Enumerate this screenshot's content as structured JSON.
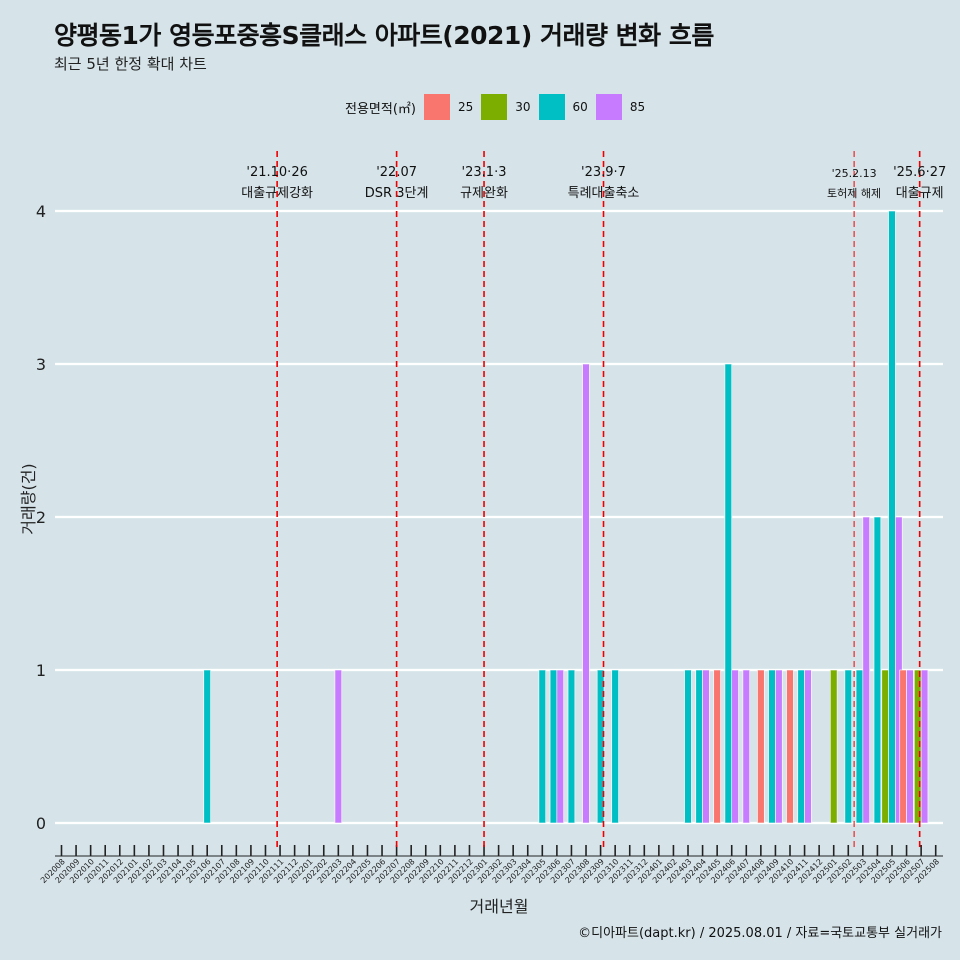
{
  "chart_data": {
    "type": "bar",
    "title": "양평동1가 영등포중흥S클래스 아파트(2021) 거래량 변화 흐름",
    "subtitle": "최근 5년 한정 확대 차트",
    "xlabel": "거래년월",
    "ylabel": "거래량(건)",
    "ylim": [
      -0.18,
      4.4
    ],
    "yticks": [
      "0",
      "1",
      "2",
      "3",
      "4"
    ],
    "legend": {
      "title": "전용면적(㎡)",
      "position": "top"
    },
    "series_colors": {
      "25": "#f8766d",
      "30": "#7cae00",
      "60": "#00bfc4",
      "85": "#c77cff"
    },
    "categories": [
      "202008",
      "202009",
      "202010",
      "202011",
      "202012",
      "202101",
      "202102",
      "202103",
      "202104",
      "202105",
      "202106",
      "202107",
      "202108",
      "202109",
      "202110",
      "202111",
      "202112",
      "202201",
      "202202",
      "202203",
      "202204",
      "202205",
      "202206",
      "202207",
      "202208",
      "202209",
      "202210",
      "202211",
      "202212",
      "202301",
      "202302",
      "202303",
      "202304",
      "202305",
      "202306",
      "202307",
      "202308",
      "202309",
      "202310",
      "202311",
      "202312",
      "202401",
      "202402",
      "202403",
      "202404",
      "202405",
      "202406",
      "202407",
      "202408",
      "202409",
      "202410",
      "202411",
      "202412",
      "202501",
      "202502",
      "202503",
      "202504",
      "202505",
      "202506",
      "202507",
      "202508"
    ],
    "bars": [
      {
        "month": "202106",
        "area": "60",
        "value": 1
      },
      {
        "month": "202203",
        "area": "85",
        "value": 1
      },
      {
        "month": "202305",
        "area": "60",
        "value": 1
      },
      {
        "month": "202306",
        "area": "60",
        "value": 1
      },
      {
        "month": "202306",
        "area": "85",
        "value": 1
      },
      {
        "month": "202307",
        "area": "60",
        "value": 1
      },
      {
        "month": "202308",
        "area": "85",
        "value": 3
      },
      {
        "month": "202309",
        "area": "60",
        "value": 1
      },
      {
        "month": "202310",
        "area": "60",
        "value": 1
      },
      {
        "month": "202403",
        "area": "60",
        "value": 1
      },
      {
        "month": "202404",
        "area": "60",
        "value": 1
      },
      {
        "month": "202404",
        "area": "85",
        "value": 1
      },
      {
        "month": "202405",
        "area": "25",
        "value": 1
      },
      {
        "month": "202406",
        "area": "60",
        "value": 3
      },
      {
        "month": "202406",
        "area": "85",
        "value": 1
      },
      {
        "month": "202407",
        "area": "85",
        "value": 1
      },
      {
        "month": "202408",
        "area": "25",
        "value": 1
      },
      {
        "month": "202409",
        "area": "60",
        "value": 1
      },
      {
        "month": "202409",
        "area": "85",
        "value": 1
      },
      {
        "month": "202410",
        "area": "25",
        "value": 1
      },
      {
        "month": "202411",
        "area": "60",
        "value": 1
      },
      {
        "month": "202411",
        "area": "85",
        "value": 1
      },
      {
        "month": "202501",
        "area": "30",
        "value": 1
      },
      {
        "month": "202502",
        "area": "60",
        "value": 1
      },
      {
        "month": "202503",
        "area": "60",
        "value": 1
      },
      {
        "month": "202503",
        "area": "85",
        "value": 2
      },
      {
        "month": "202504",
        "area": "60",
        "value": 2
      },
      {
        "month": "202505",
        "area": "30",
        "value": 1
      },
      {
        "month": "202505",
        "area": "60",
        "value": 4
      },
      {
        "month": "202505",
        "area": "85",
        "value": 2
      },
      {
        "month": "202506",
        "area": "25",
        "value": 1
      },
      {
        "month": "202506",
        "area": "85",
        "value": 1
      },
      {
        "month": "202507",
        "area": "30",
        "value": 1
      },
      {
        "month": "202507",
        "area": "85",
        "value": 1
      }
    ],
    "annotations": [
      {
        "date_label": "'21.10·26",
        "text": "대출규제강화",
        "month": "202110",
        "offset": 0.8,
        "small": false
      },
      {
        "date_label": "'22.07",
        "text": "DSR 3단계",
        "month": "202207",
        "offset": 0.0,
        "small": false
      },
      {
        "date_label": "'23.1·3",
        "text": "규제완화",
        "month": "202301",
        "offset": 0.0,
        "small": false
      },
      {
        "date_label": "'23.9·7",
        "text": "특례대출축소",
        "month": "202309",
        "offset": 0.2,
        "small": false
      },
      {
        "date_label": "'25.2.13",
        "text": "토허제 해제",
        "month": "202502",
        "offset": 0.4,
        "small": true
      },
      {
        "date_label": "'25.6·27",
        "text": "대출규제",
        "month": "202506",
        "offset": 0.9,
        "small": false
      }
    ]
  },
  "legend_items": [
    {
      "label": "25",
      "color": "#f8766d"
    },
    {
      "label": "30",
      "color": "#7cae00"
    },
    {
      "label": "60",
      "color": "#00bfc4"
    },
    {
      "label": "85",
      "color": "#c77cff"
    }
  ],
  "caption": "©디아파트(dapt.kr) / 2025.08.01 / 자료=국토교통부 실거래가"
}
